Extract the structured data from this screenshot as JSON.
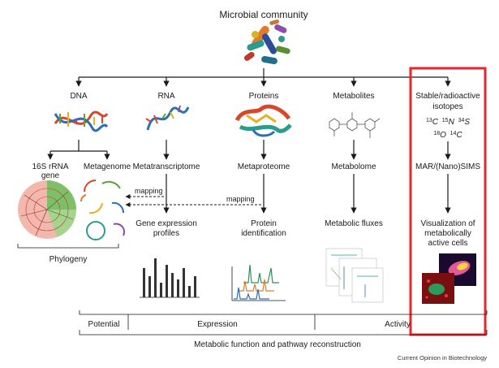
{
  "title": "Microbial community",
  "columns": {
    "dna": {
      "label": "DNA",
      "sub1": "16S rRNA",
      "sub1b": "gene",
      "sub2": "Metagenome"
    },
    "rna": {
      "label": "RNA",
      "method": "Metatranscriptome",
      "result1": "Gene expression",
      "result2": "profiles"
    },
    "proteins": {
      "label": "Proteins",
      "method": "Metaproteome",
      "result1": "Protein",
      "result2": "identification"
    },
    "metabolites": {
      "label": "Metabolites",
      "method": "Metabolome",
      "result1": "Metabolic fluxes"
    },
    "isotopes": {
      "label1": "Stable/radioactive",
      "label2": "isotopes",
      "iso_line1": {
        "m1": "13",
        "e1": "C",
        "m2": "15",
        "e2": "N",
        "m3": "34",
        "e3": "S"
      },
      "iso_line2": {
        "m1": "18",
        "e1": "O",
        "m2": "14",
        "e2": "C"
      },
      "method": "MAR/(Nano)SIMS",
      "result1": "Visualization of",
      "result2": "metabolically",
      "result3": "active cells"
    }
  },
  "mapping_labels": [
    "mapping",
    "mapping"
  ],
  "brackets": {
    "phylogeny": "Phylogeny",
    "potential": "Potential",
    "expression": "Expression",
    "activity": "Activity",
    "bottom": "Metabolic function and pathway reconstruction"
  },
  "credit": "Current Opinion in Biotechnology",
  "colors": {
    "highlight": "#e8262b",
    "line": "#1a1a1a"
  }
}
